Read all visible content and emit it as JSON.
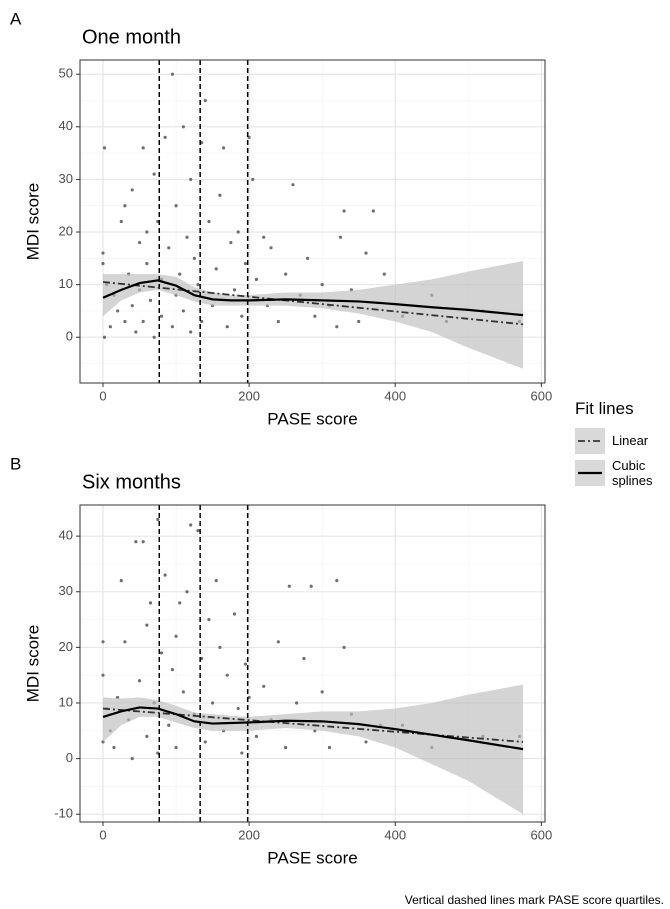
{
  "chart_data": [
    {
      "type": "scatter",
      "panel": "A",
      "title": "One month",
      "xlabel": "PASE score",
      "ylabel": "MDI score",
      "xlim": [
        -31.5,
        605
      ],
      "ylim": [
        -8.7,
        52.7
      ],
      "xticks": [
        0,
        200,
        400,
        600
      ],
      "yticks": [
        0,
        10,
        20,
        30,
        40,
        50
      ],
      "xminor": [
        100,
        300,
        500
      ],
      "yminor": [
        -5,
        5,
        15,
        25,
        35,
        45
      ],
      "grid": true,
      "quartile_lines": [
        77,
        133,
        198
      ],
      "points": {
        "color": "#6e6e6e",
        "x": [
          0,
          0,
          2,
          2,
          5,
          10,
          15,
          20,
          25,
          30,
          30,
          35,
          40,
          40,
          45,
          50,
          50,
          55,
          55,
          60,
          60,
          65,
          70,
          70,
          75,
          80,
          80,
          85,
          90,
          95,
          95,
          100,
          100,
          105,
          110,
          110,
          115,
          120,
          120,
          125,
          130,
          135,
          135,
          140,
          145,
          150,
          155,
          160,
          165,
          170,
          175,
          180,
          185,
          190,
          195,
          200,
          205,
          210,
          220,
          225,
          230,
          240,
          250,
          260,
          270,
          280,
          290,
          300,
          310,
          320,
          325,
          330,
          340,
          350,
          360,
          370,
          385,
          410,
          450,
          470,
          520,
          570
        ],
        "values": [
          16,
          14,
          0,
          36,
          10,
          2,
          8,
          5,
          22,
          3,
          25,
          12,
          28,
          6,
          1,
          18,
          9,
          36,
          3,
          20,
          14,
          7,
          31,
          0,
          22,
          11,
          4,
          38,
          17,
          50,
          2,
          25,
          8,
          12,
          40,
          5,
          19,
          30,
          1,
          15,
          10,
          37,
          3,
          45,
          22,
          6,
          13,
          27,
          36,
          2,
          18,
          9,
          20,
          4,
          14,
          38,
          30,
          11,
          19,
          6,
          17,
          3,
          12,
          29,
          8,
          15,
          4,
          10,
          6,
          2,
          19,
          24,
          9,
          3,
          16,
          24,
          12,
          4,
          8,
          3,
          5,
          3
        ]
      },
      "band": {
        "color": "#bdbdbd",
        "x": [
          0,
          25,
          50,
          75,
          100,
          125,
          150,
          175,
          200,
          250,
          300,
          350,
          400,
          450,
          500,
          575
        ],
        "lower": [
          4,
          7,
          8.5,
          9,
          8,
          6.8,
          6,
          6,
          6,
          6,
          5.5,
          4.5,
          3,
          1,
          -2,
          -6
        ],
        "upper": [
          12,
          12,
          12,
          12,
          11.5,
          9.5,
          8.5,
          8,
          8,
          8.5,
          8.5,
          9,
          10,
          11,
          12.5,
          14.5
        ]
      },
      "series": [
        {
          "style": "linear",
          "color": "#333333",
          "x": [
            0,
            575
          ],
          "values": [
            10.5,
            2.45
          ]
        },
        {
          "style": "spline",
          "color": "#000000",
          "x": [
            0,
            25,
            50,
            75,
            100,
            125,
            150,
            175,
            200,
            250,
            300,
            350,
            400,
            450,
            500,
            575
          ],
          "values": [
            7.5,
            9,
            10.3,
            10.8,
            9.8,
            8,
            7.2,
            7,
            7,
            7.2,
            7,
            6.8,
            6.3,
            5.7,
            5.2,
            4.2
          ]
        }
      ]
    },
    {
      "type": "scatter",
      "panel": "B",
      "title": "Six months",
      "xlabel": "PASE score",
      "ylabel": "MDI score",
      "xlim": [
        -31.5,
        605
      ],
      "ylim": [
        -11.4,
        45.6
      ],
      "xticks": [
        0,
        200,
        400,
        600
      ],
      "yticks": [
        -10,
        0,
        10,
        20,
        30,
        40
      ],
      "xminor": [
        100,
        300,
        500
      ],
      "yminor": [
        -5,
        5,
        15,
        25,
        35,
        45
      ],
      "grid": true,
      "quartile_lines": [
        77,
        133,
        198
      ],
      "points": {
        "color": "#6e6e6e",
        "x": [
          0,
          0,
          0,
          5,
          10,
          15,
          20,
          25,
          30,
          35,
          40,
          45,
          50,
          55,
          60,
          60,
          65,
          70,
          75,
          75,
          80,
          85,
          90,
          95,
          100,
          100,
          105,
          110,
          115,
          120,
          125,
          130,
          135,
          140,
          145,
          150,
          155,
          160,
          165,
          170,
          180,
          185,
          190,
          195,
          200,
          210,
          220,
          230,
          240,
          250,
          255,
          265,
          275,
          285,
          290,
          300,
          310,
          320,
          330,
          340,
          360,
          380,
          410,
          450,
          520,
          570
        ],
        "values": [
          21,
          15,
          3,
          9,
          5,
          2,
          11,
          32,
          21,
          7,
          0,
          39,
          14,
          39,
          24,
          4,
          28,
          10,
          43,
          1,
          19,
          33,
          6,
          16,
          22,
          2,
          28,
          12,
          30,
          42,
          8,
          41,
          18,
          3,
          25,
          10,
          32,
          20,
          5,
          15,
          26,
          9,
          1,
          17,
          11,
          4,
          13,
          7,
          21,
          2,
          31,
          10,
          18,
          31,
          5,
          12,
          2,
          32,
          20,
          8,
          3,
          6,
          6,
          2,
          4,
          4
        ]
      },
      "band": {
        "color": "#bdbdbd",
        "x": [
          0,
          25,
          50,
          75,
          100,
          125,
          150,
          175,
          200,
          250,
          300,
          350,
          400,
          450,
          500,
          575
        ],
        "lower": [
          3,
          6,
          7.5,
          7.5,
          6.5,
          5.5,
          5,
          5,
          5,
          5.5,
          5,
          4,
          2,
          -1,
          -4,
          -10
        ],
        "upper": [
          11,
          10.8,
          11,
          10.5,
          9.5,
          8.3,
          8,
          7.7,
          7.5,
          8,
          8.5,
          8.5,
          9,
          10,
          11.5,
          13.3
        ]
      },
      "series": [
        {
          "style": "linear",
          "color": "#333333",
          "x": [
            0,
            575
          ],
          "values": [
            9,
            3
          ]
        },
        {
          "style": "spline",
          "color": "#000000",
          "x": [
            0,
            25,
            50,
            75,
            100,
            125,
            150,
            175,
            200,
            250,
            300,
            350,
            400,
            450,
            500,
            575
          ],
          "values": [
            7.5,
            8.5,
            9.2,
            9,
            8,
            6.7,
            6.3,
            6.4,
            6.5,
            6.8,
            6.7,
            6.2,
            5.3,
            4.3,
            3.3,
            1.7
          ]
        }
      ]
    }
  ],
  "legend": {
    "title": "Fit lines",
    "entries": [
      {
        "label": "Linear",
        "style": "linear"
      },
      {
        "label": "Cubic splines",
        "style": "spline"
      }
    ]
  },
  "caption": "Vertical dashed lines mark PASE score quartiles."
}
